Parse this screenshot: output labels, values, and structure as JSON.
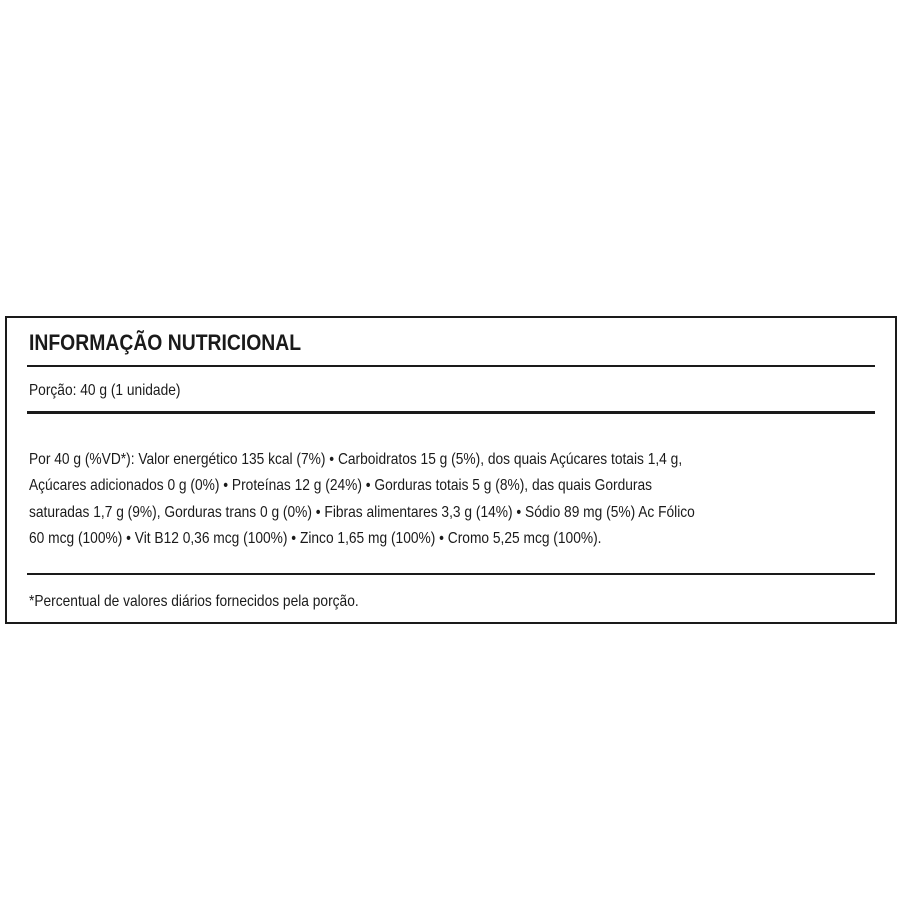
{
  "label": {
    "title": "INFORMAÇÃO NUTRICIONAL",
    "portion": "Porção: 40 g (1 unidade)",
    "body_lines": [
      "Por 40 g (%VD*): Valor energético 135 kcal (7%) • Carboidratos 15 g (5%), dos quais Açúcares totais 1,4 g,",
      "Açúcares adicionados 0 g (0%) • Proteínas 12 g (24%) • Gorduras totais 5 g (8%), das quais Gorduras",
      "saturadas 1,7 g (9%), Gorduras trans 0 g (0%) • Fibras alimentares 3,3 g (14%) • Sódio 89 mg (5%)  Ac Fólico",
      "60 mcg (100%) • Vit B12 0,36 mcg (100%) • Zinco 1,65 mg (100%) • Cromo 5,25 mcg (100%)."
    ],
    "footnote": "*Percentual de valores diários fornecidos pela porção."
  }
}
